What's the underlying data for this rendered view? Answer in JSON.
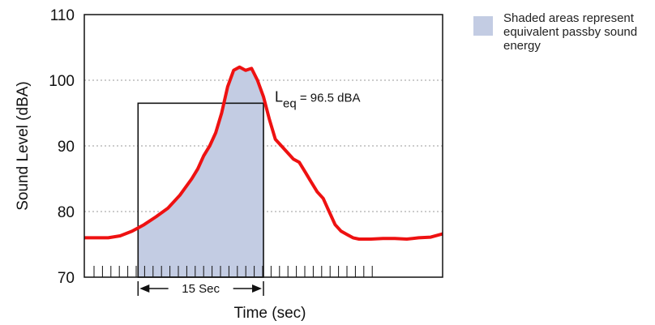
{
  "chart_data": {
    "type": "area",
    "xlabel": "Time (sec)",
    "ylabel": "Sound Level (dBA)",
    "ylim": [
      70,
      110
    ],
    "xlim": [
      0,
      30
    ],
    "yticks": [
      70,
      80,
      90,
      100,
      110
    ],
    "grid": "horizontal-dotted",
    "series": [
      {
        "color": "#ee1111",
        "x": [
          0,
          1,
          2,
          3,
          4,
          5,
          6,
          7,
          8,
          9,
          9.5,
          10,
          10.5,
          11,
          11.5,
          12,
          12.5,
          13,
          13.5,
          14,
          14.5,
          15,
          15.5,
          16,
          16.5,
          17,
          17.5,
          18,
          18.5,
          19,
          19.5,
          20,
          20.5,
          21,
          21.5,
          22,
          22.5,
          23,
          24,
          25,
          26,
          27,
          28,
          29,
          30
        ],
        "values": [
          76,
          76,
          76,
          76.3,
          77,
          78,
          79.2,
          80.5,
          82.5,
          85,
          86.5,
          88.5,
          90,
          92,
          95,
          99,
          101.5,
          102,
          101.5,
          101.8,
          100,
          97.5,
          94,
          91,
          90,
          89,
          88,
          87.5,
          86,
          84.5,
          83,
          82,
          80,
          78,
          77,
          76.5,
          76,
          75.8,
          75.8,
          75.9,
          75.9,
          75.8,
          76,
          76.1,
          76.6
        ]
      }
    ],
    "leq_box": {
      "x_start": 4.5,
      "x_end": 15,
      "value": 96.5
    },
    "annotations": {
      "leq_label_L": "L",
      "leq_label_sub": "eq",
      "leq_label_value": " = 96.5 dBA",
      "duration_label": "15 Sec"
    },
    "legend": {
      "placement": "top-right",
      "label": "Shaded areas represent equivalent passby sound energy",
      "color": "#c3cce3"
    }
  }
}
